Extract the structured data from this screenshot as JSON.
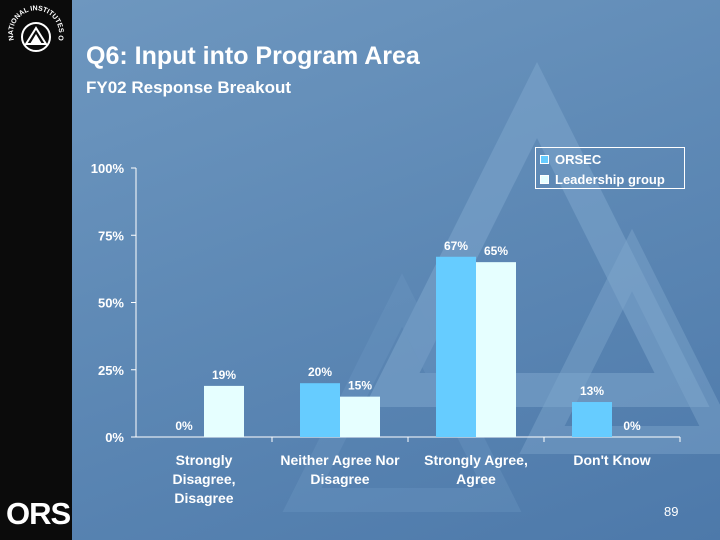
{
  "slide": {
    "title": "Q6:  Input into Program Area",
    "subtitle": "FY02 Response Breakout",
    "page_number": "89",
    "ors_logo": "ORS",
    "seal_text": "NATIONAL INSTITUTES OF HEALTH"
  },
  "colors": {
    "background": "#5f8ab6",
    "sidebar": "#0b0b0b",
    "orsec": "#66ccff",
    "leadership": "#e6ffff",
    "text": "#ffffff"
  },
  "chart_data": {
    "type": "bar",
    "categories": [
      [
        "Strongly",
        "Disagree,",
        "Disagree"
      ],
      [
        "Neither Agree Nor",
        "Disagree"
      ],
      [
        "Strongly Agree,",
        "Agree"
      ],
      [
        "Don't Know"
      ]
    ],
    "series": [
      {
        "name": "ORSEC",
        "values": [
          0,
          20,
          67,
          13
        ],
        "labels": [
          "0%",
          "20%",
          "67%",
          "13%"
        ],
        "color": "#66ccff"
      },
      {
        "name": "Leadership group",
        "values": [
          19,
          15,
          65,
          0
        ],
        "labels": [
          "19%",
          "15%",
          "65%",
          "0%"
        ],
        "color": "#e6ffff"
      }
    ],
    "yticks": [
      "0%",
      "25%",
      "50%",
      "75%",
      "100%"
    ],
    "ylim": [
      0,
      100
    ],
    "grid": false,
    "legend_position": "top-right"
  }
}
